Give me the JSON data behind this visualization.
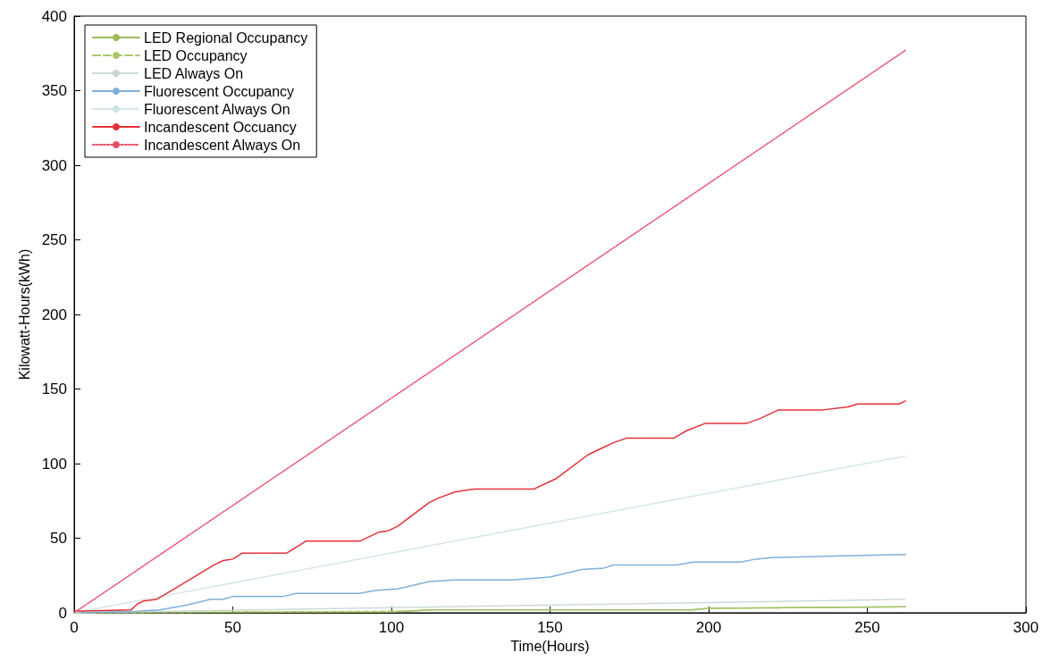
{
  "chart_data": {
    "type": "line",
    "xlabel": "Time(Hours)",
    "ylabel": "Kilowatt-Hours(kWh)",
    "xlim": [
      0,
      300
    ],
    "xticks": [
      0,
      50,
      100,
      150,
      200,
      250,
      300
    ],
    "ylim": [
      0,
      400
    ],
    "yticks": [
      0,
      50,
      100,
      150,
      200,
      250,
      300,
      350,
      400
    ],
    "grid": false,
    "legend": "top left",
    "marker": "none",
    "series": [
      {
        "name": "LED Regional Occupancy",
        "color": "#9dba5c",
        "line_style": "solid",
        "x": [
          0,
          100,
          112,
          195,
          200,
          262
        ],
        "values": [
          0,
          0.5,
          2,
          2,
          3,
          4
        ]
      },
      {
        "name": "LED Occupancy",
        "color": "#a8c86a",
        "line_style": "dashed",
        "x": [
          0,
          100,
          115,
          195,
          200,
          262
        ],
        "values": [
          0,
          1,
          2,
          2,
          3,
          4
        ]
      },
      {
        "name": "LED Always On",
        "color": "#c4d6d2",
        "line_style": "dotted",
        "x": [
          0,
          262
        ],
        "values": [
          0,
          9
        ]
      },
      {
        "name": "Fluorescent Occupancy",
        "color": "#7fb0d8",
        "line_style": "solid",
        "x": [
          0,
          20,
          27,
          35,
          43,
          47,
          50,
          66,
          70,
          90,
          95,
          102,
          112,
          120,
          138,
          150,
          160,
          167,
          170,
          190,
          195,
          210,
          215,
          220,
          240,
          262
        ],
        "values": [
          0,
          1,
          2,
          5,
          9,
          9,
          11,
          11,
          13,
          13,
          15,
          16,
          21,
          22,
          22,
          24,
          29,
          30,
          32,
          32,
          34,
          34,
          36,
          37,
          38,
          39
        ]
      },
      {
        "name": "Fluorescent Always On",
        "color": "#cfe2e6",
        "line_style": "dotted",
        "x": [
          0,
          262
        ],
        "values": [
          0,
          105
        ]
      },
      {
        "name": "Incandescent Occuancy",
        "color": "#e3303a",
        "line_style": "solid",
        "x": [
          0,
          18,
          20,
          22,
          26,
          30,
          44,
          47,
          50,
          53,
          67,
          70,
          73,
          90,
          93,
          96,
          99,
          102,
          112,
          115,
          120,
          126,
          145,
          150,
          152,
          162,
          166,
          170,
          174,
          189,
          193,
          199,
          212,
          216,
          219,
          222,
          236,
          244,
          247,
          260,
          262
        ],
        "values": [
          1,
          2,
          6,
          8,
          9,
          14,
          32,
          35,
          36,
          40,
          40,
          44,
          48,
          48,
          51,
          54,
          55,
          58,
          74,
          77,
          81,
          83,
          83,
          88,
          90,
          106,
          110,
          114,
          117,
          117,
          122,
          127,
          127,
          130,
          133,
          136,
          136,
          138,
          140,
          140,
          142
        ]
      },
      {
        "name": "Incandescent Always On",
        "color": "#e8506a",
        "line_style": "dotted",
        "x": [
          0,
          262
        ],
        "values": [
          0,
          377
        ]
      }
    ]
  }
}
